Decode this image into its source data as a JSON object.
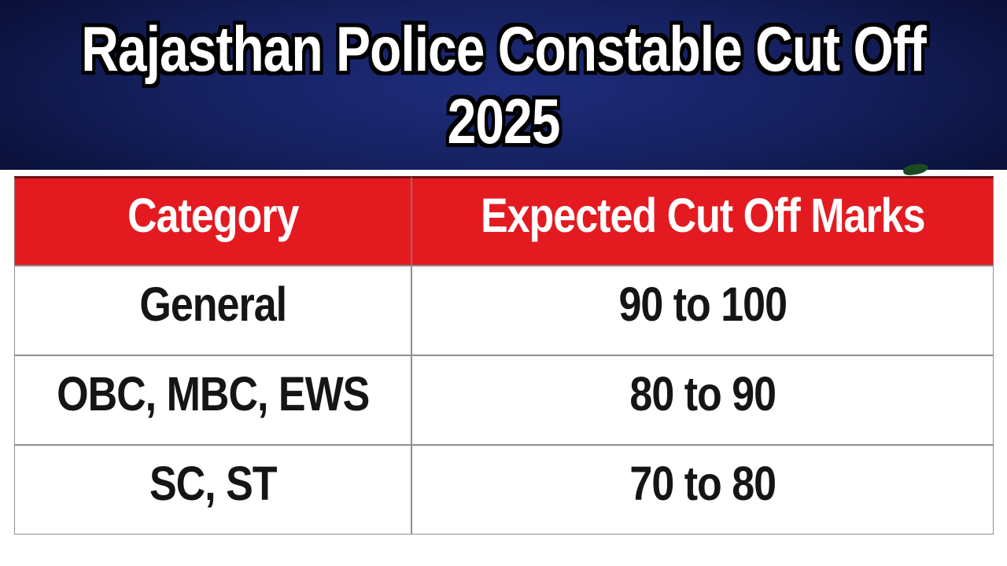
{
  "banner": {
    "title_line1": "Rajasthan Police Constable Cut Off",
    "title_line2": "2025"
  },
  "table": {
    "columns": [
      "Category",
      "Expected Cut Off Marks"
    ],
    "rows": [
      {
        "category": "General",
        "marks": "90 to 100"
      },
      {
        "category": "OBC, MBC, EWS",
        "marks": "80 to 90"
      },
      {
        "category": "SC, ST",
        "marks": "70 to 80"
      }
    ]
  },
  "colors": {
    "page_bg": "#ffffff",
    "banner_center": "#1e2c7c",
    "banner_edge": "#0a1038",
    "title_text": "#ffffff",
    "title_outline": "#000000",
    "header_bg": "#e31b21",
    "header_top_border": "#6d1013",
    "header_text": "#ffffff",
    "body_text": "#151515",
    "table_border": "#8f8f8f",
    "green_blob": "#1c4a20"
  }
}
